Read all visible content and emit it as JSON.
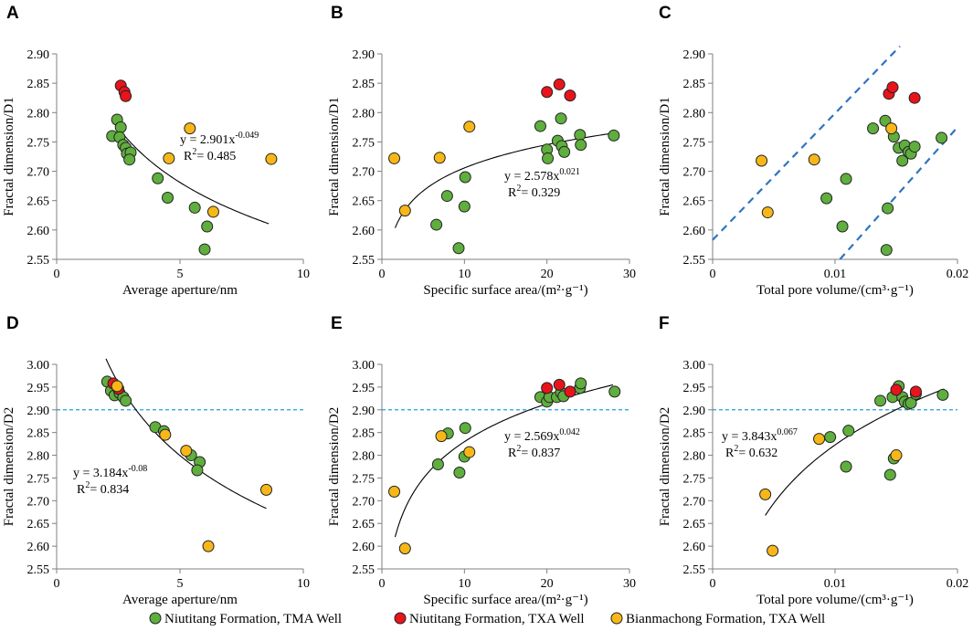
{
  "colors": {
    "green": "#5fae3e",
    "red": "#e8141b",
    "yellow": "#f7b718",
    "guide": "#2f74c0",
    "threshold": "#1ba1e2"
  },
  "legend": [
    {
      "label": "Niutitang Formation, TMA Well",
      "color": "green"
    },
    {
      "label": "Niutitang Formation, TXA Well",
      "color": "red"
    },
    {
      "label": "Bianmachong Formation, TXA Well",
      "color": "yellow"
    }
  ],
  "chart_data": [
    {
      "letter": "A",
      "type": "scatter",
      "xlabel": "Average aperture/nm",
      "ylabel": "Fractal dimension/D1",
      "xlim": [
        0,
        10
      ],
      "ylim": [
        2.55,
        2.9
      ],
      "xticks": [
        "0",
        "5",
        "10"
      ],
      "yticks": [
        "2.55",
        "2.60",
        "2.65",
        "2.70",
        "2.75",
        "2.80",
        "2.85",
        "2.90"
      ],
      "series": [
        {
          "name": "Niutitang Formation, TMA Well",
          "color": "green",
          "points": [
            [
              2.25,
              2.76
            ],
            [
              2.45,
              2.788
            ],
            [
              2.6,
              2.775
            ],
            [
              2.55,
              2.758
            ],
            [
              2.7,
              2.745
            ],
            [
              2.8,
              2.74
            ],
            [
              2.85,
              2.73
            ],
            [
              3.0,
              2.732
            ],
            [
              2.95,
              2.72
            ],
            [
              4.1,
              2.688
            ],
            [
              4.5,
              2.655
            ],
            [
              5.6,
              2.638
            ],
            [
              6.1,
              2.606
            ],
            [
              6.0,
              2.567
            ]
          ]
        },
        {
          "name": "Niutitang Formation, TXA Well",
          "color": "red",
          "points": [
            [
              2.6,
              2.846
            ],
            [
              2.75,
              2.835
            ],
            [
              2.8,
              2.828
            ]
          ]
        },
        {
          "name": "Bianmachong Formation, TXA Well",
          "color": "yellow",
          "points": [
            [
              5.4,
              2.773
            ],
            [
              4.55,
              2.722
            ],
            [
              6.35,
              2.631
            ],
            [
              8.7,
              2.721
            ]
          ]
        }
      ],
      "fit": {
        "a": 2.901,
        "b": -0.049,
        "xmin": 2.3,
        "xmax": 8.6
      },
      "equation": {
        "prefix": "y = 2.901x",
        "exponent": "-0.049",
        "r2_label": "R",
        "r2_value": "= 0.485"
      }
    },
    {
      "letter": "B",
      "type": "scatter",
      "xlabel": "Specific surface area/(m²·g⁻¹)",
      "ylabel": "Fractal dimension/D1",
      "xlim": [
        0,
        30
      ],
      "ylim": [
        2.55,
        2.9
      ],
      "xticks": [
        "0",
        "10",
        "20",
        "30"
      ],
      "yticks": [
        "2.55",
        "2.60",
        "2.65",
        "2.70",
        "2.75",
        "2.80",
        "2.85",
        "2.90"
      ],
      "series": [
        {
          "name": "Niutitang Formation, TMA Well",
          "color": "green",
          "points": [
            [
              6.6,
              2.609
            ],
            [
              7.9,
              2.658
            ],
            [
              9.3,
              2.569
            ],
            [
              10.0,
              2.64
            ],
            [
              10.1,
              2.69
            ],
            [
              19.2,
              2.777
            ],
            [
              20.0,
              2.737
            ],
            [
              20.1,
              2.722
            ],
            [
              21.3,
              2.752
            ],
            [
              21.7,
              2.79
            ],
            [
              21.8,
              2.743
            ],
            [
              22.1,
              2.733
            ],
            [
              24.0,
              2.762
            ],
            [
              24.1,
              2.745
            ],
            [
              28.1,
              2.761
            ]
          ]
        },
        {
          "name": "Niutitang Formation, TXA Well",
          "color": "red",
          "points": [
            [
              20.0,
              2.835
            ],
            [
              21.5,
              2.848
            ],
            [
              22.8,
              2.829
            ]
          ]
        },
        {
          "name": "Bianmachong Formation, TXA Well",
          "color": "yellow",
          "points": [
            [
              1.5,
              2.722
            ],
            [
              2.8,
              2.633
            ],
            [
              7.0,
              2.723
            ],
            [
              10.6,
              2.776
            ]
          ]
        }
      ],
      "fit": {
        "a": 2.578,
        "b": 0.021,
        "xmin": 1.6,
        "xmax": 28.0
      },
      "equation": {
        "prefix": "y = 2.578x",
        "exponent": "0.021",
        "r2_label": "R",
        "r2_value": "= 0.329"
      }
    },
    {
      "letter": "C",
      "type": "scatter",
      "xlabel": "Total pore volume/(cm³·g⁻¹)",
      "ylabel": "Fractal dimension/D1",
      "xlim": [
        0,
        0.02
      ],
      "ylim": [
        2.55,
        2.9
      ],
      "xticks": [
        "0",
        "0.01",
        "0.02"
      ],
      "yticks": [
        "2.55",
        "2.60",
        "2.65",
        "2.70",
        "2.75",
        "2.80",
        "2.85",
        "2.90"
      ],
      "series": [
        {
          "name": "Niutitang Formation, TMA Well",
          "color": "green",
          "points": [
            [
              0.0093,
              2.654
            ],
            [
              0.0106,
              2.606
            ],
            [
              0.0109,
              2.687
            ],
            [
              0.0131,
              2.773
            ],
            [
              0.0141,
              2.786
            ],
            [
              0.0143,
              2.637
            ],
            [
              0.0142,
              2.566
            ],
            [
              0.0148,
              2.759
            ],
            [
              0.0152,
              2.74
            ],
            [
              0.0155,
              2.718
            ],
            [
              0.0157,
              2.744
            ],
            [
              0.016,
              2.733
            ],
            [
              0.0162,
              2.73
            ],
            [
              0.0165,
              2.742
            ],
            [
              0.0187,
              2.757
            ]
          ]
        },
        {
          "name": "Niutitang Formation, TXA Well",
          "color": "red",
          "points": [
            [
              0.0144,
              2.832
            ],
            [
              0.0147,
              2.843
            ],
            [
              0.0165,
              2.825
            ]
          ]
        },
        {
          "name": "Bianmachong Formation, TXA Well",
          "color": "yellow",
          "points": [
            [
              0.004,
              2.718
            ],
            [
              0.0045,
              2.63
            ],
            [
              0.0083,
              2.72
            ],
            [
              0.0146,
              2.773
            ]
          ]
        }
      ],
      "guides": [
        [
          [
            0.0,
            2.583
          ],
          [
            0.0153,
            2.913
          ]
        ],
        [
          [
            0.0104,
            2.55
          ],
          [
            0.02,
            2.775
          ]
        ]
      ]
    },
    {
      "letter": "D",
      "type": "scatter",
      "xlabel": "Average aperture/nm",
      "ylabel": "Fractal dimension/D2",
      "xlim": [
        0,
        10
      ],
      "ylim": [
        2.55,
        3.0
      ],
      "xticks": [
        "0",
        "5",
        "10"
      ],
      "yticks": [
        "2.55",
        "2.60",
        "2.65",
        "2.70",
        "2.75",
        "2.80",
        "2.85",
        "2.90",
        "2.95",
        "3.00"
      ],
      "threshold": 2.9,
      "series": [
        {
          "name": "Niutitang Formation, TMA Well",
          "color": "green",
          "points": [
            [
              2.05,
              2.962
            ],
            [
              2.2,
              2.942
            ],
            [
              2.35,
              2.932
            ],
            [
              2.55,
              2.937
            ],
            [
              2.7,
              2.928
            ],
            [
              2.8,
              2.92
            ],
            [
              4.0,
              2.862
            ],
            [
              4.35,
              2.853
            ],
            [
              5.45,
              2.8
            ],
            [
              5.8,
              2.785
            ],
            [
              5.7,
              2.767
            ]
          ]
        },
        {
          "name": "Niutitang Formation, TXA Well",
          "color": "red",
          "points": [
            [
              2.3,
              2.958
            ],
            [
              2.5,
              2.946
            ]
          ]
        },
        {
          "name": "Bianmachong Formation, TXA Well",
          "color": "yellow",
          "points": [
            [
              2.45,
              2.952
            ],
            [
              4.4,
              2.845
            ],
            [
              5.25,
              2.81
            ],
            [
              8.5,
              2.724
            ],
            [
              6.15,
              2.6
            ]
          ]
        }
      ],
      "fit": {
        "a": 3.184,
        "b": -0.08,
        "xmin": 2.0,
        "xmax": 8.5
      },
      "equation": {
        "prefix": "y = 3.184x",
        "exponent": "-0.08",
        "r2_label": "R",
        "r2_value": "= 0.834"
      }
    },
    {
      "letter": "E",
      "type": "scatter",
      "xlabel": "Specific surface area/(m²·g⁻¹)",
      "ylabel": "Fractal dimension/D2",
      "xlim": [
        0,
        30
      ],
      "ylim": [
        2.55,
        3.0
      ],
      "xticks": [
        "0",
        "10",
        "20",
        "30"
      ],
      "yticks": [
        "2.55",
        "2.60",
        "2.65",
        "2.70",
        "2.75",
        "2.80",
        "2.85",
        "2.90",
        "2.95",
        "3.00"
      ],
      "threshold": 2.9,
      "series": [
        {
          "name": "Niutitang Formation, TMA Well",
          "color": "green",
          "points": [
            [
              6.8,
              2.78
            ],
            [
              8.0,
              2.848
            ],
            [
              9.4,
              2.762
            ],
            [
              10.0,
              2.797
            ],
            [
              10.1,
              2.86
            ],
            [
              19.2,
              2.928
            ],
            [
              20.0,
              2.918
            ],
            [
              20.3,
              2.928
            ],
            [
              21.2,
              2.928
            ],
            [
              21.7,
              2.938
            ],
            [
              22.0,
              2.93
            ],
            [
              24.0,
              2.948
            ],
            [
              24.1,
              2.958
            ],
            [
              28.2,
              2.94
            ]
          ]
        },
        {
          "name": "Niutitang Formation, TXA Well",
          "color": "red",
          "points": [
            [
              20.0,
              2.948
            ],
            [
              21.5,
              2.955
            ],
            [
              22.8,
              2.94
            ]
          ]
        },
        {
          "name": "Bianmachong Formation, TXA Well",
          "color": "yellow",
          "points": [
            [
              1.5,
              2.72
            ],
            [
              2.8,
              2.595
            ],
            [
              7.2,
              2.842
            ],
            [
              10.6,
              2.807
            ]
          ]
        }
      ],
      "fit": {
        "a": 2.569,
        "b": 0.042,
        "xmin": 1.6,
        "xmax": 28.0
      },
      "equation": {
        "prefix": "y = 2.569x",
        "exponent": "0.042",
        "r2_label": "R",
        "r2_value": "= 0.837"
      }
    },
    {
      "letter": "F",
      "type": "scatter",
      "xlabel": "Total pore volume/(cm³·g⁻¹)",
      "ylabel": "Fractal dimension/D2",
      "xlim": [
        0,
        0.02
      ],
      "ylim": [
        2.55,
        3.0
      ],
      "xticks": [
        "0",
        "0.01",
        "0.02"
      ],
      "yticks": [
        "2.55",
        "2.60",
        "2.65",
        "2.70",
        "2.75",
        "2.80",
        "2.85",
        "2.90",
        "2.95",
        "3.00"
      ],
      "threshold": 2.9,
      "series": [
        {
          "name": "Niutitang Formation, TMA Well",
          "color": "green",
          "points": [
            [
              0.0096,
              2.84
            ],
            [
              0.0109,
              2.775
            ],
            [
              0.0111,
              2.854
            ],
            [
              0.0137,
              2.92
            ],
            [
              0.0145,
              2.757
            ],
            [
              0.0147,
              2.928
            ],
            [
              0.0148,
              2.793
            ],
            [
              0.0152,
              2.952
            ],
            [
              0.0155,
              2.928
            ],
            [
              0.0157,
              2.918
            ],
            [
              0.016,
              2.913
            ],
            [
              0.0162,
              2.915
            ],
            [
              0.0166,
              2.935
            ],
            [
              0.0188,
              2.933
            ]
          ]
        },
        {
          "name": "Niutitang Formation, TXA Well",
          "color": "red",
          "points": [
            [
              0.015,
              2.944
            ],
            [
              0.0166,
              2.94
            ]
          ]
        },
        {
          "name": "Bianmachong Formation, TXA Well",
          "color": "yellow",
          "points": [
            [
              0.0043,
              2.714
            ],
            [
              0.0049,
              2.59
            ],
            [
              0.0087,
              2.836
            ],
            [
              0.015,
              2.8
            ]
          ]
        }
      ],
      "fit": {
        "a": 3.843,
        "b": 0.067,
        "xmin": 0.0043,
        "xmax": 0.0189
      },
      "equation": {
        "prefix": "y = 3.843x",
        "exponent": "0.067",
        "r2_label": "R",
        "r2_value": "= 0.632"
      }
    }
  ]
}
